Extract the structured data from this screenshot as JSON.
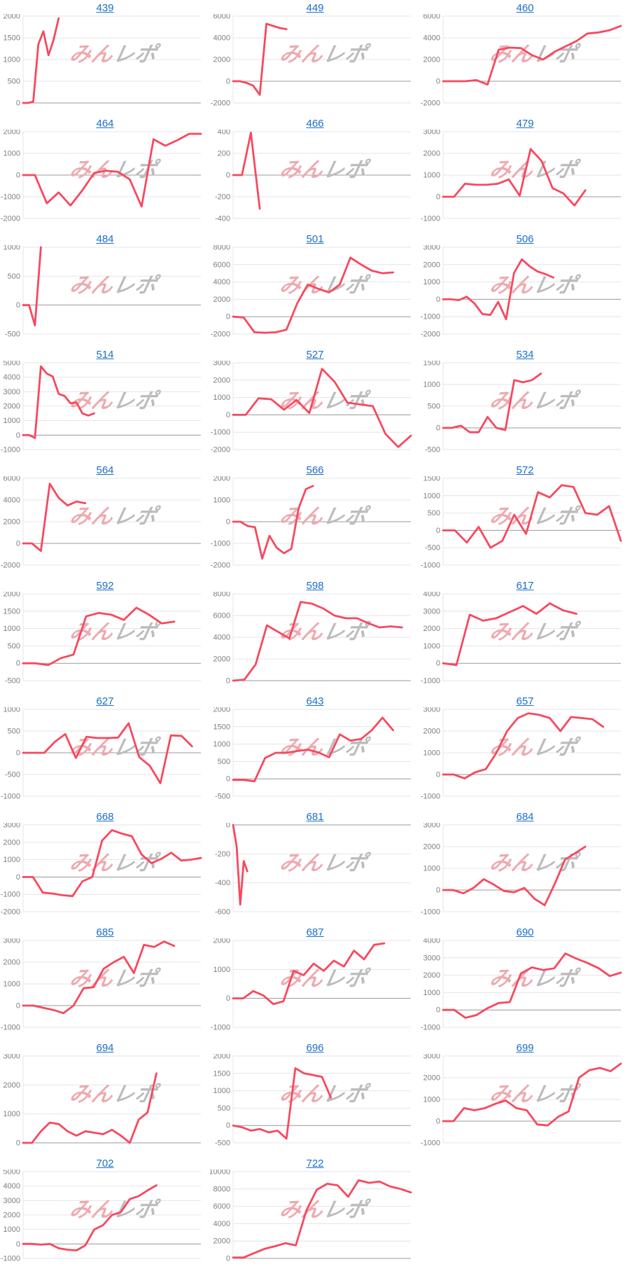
{
  "page": {
    "background": "#ffffff",
    "watermark": {
      "part1": "みん",
      "part2": "レポ"
    }
  },
  "colors": {
    "line": "#f8485e",
    "grid": "#e4e4e4",
    "zero_line": "#999999",
    "axis_text": "#7f7f7f",
    "title_link": "#1a6fce",
    "watermark_pink": "#edaab0",
    "watermark_gray": "#bcbcbc"
  },
  "chart_data": [
    {
      "type": "line",
      "title": "439",
      "ylim": [
        0,
        2000
      ],
      "yticks": [
        0,
        500,
        1000,
        1500,
        2000
      ],
      "span": 0.2,
      "values": [
        0,
        0,
        30,
        1350,
        1650,
        1100,
        1450,
        1950
      ]
    },
    {
      "type": "line",
      "title": "449",
      "ylim": [
        -2000,
        6000
      ],
      "yticks": [
        -2000,
        0,
        2000,
        4000,
        6000
      ],
      "span": 0.3,
      "values": [
        0,
        0,
        -150,
        -400,
        -1250,
        5300,
        5100,
        4900,
        4800
      ]
    },
    {
      "type": "line",
      "title": "460",
      "ylim": [
        -2000,
        6000
      ],
      "yticks": [
        -2000,
        0,
        2000,
        4000,
        6000
      ],
      "span": 1.0,
      "values": [
        0,
        0,
        0,
        100,
        -300,
        2900,
        3100,
        3050,
        2400,
        2000,
        2700,
        3200,
        3700,
        4400,
        4500,
        4700,
        5100
      ]
    },
    {
      "type": "line",
      "title": "464",
      "ylim": [
        -2000,
        2000
      ],
      "yticks": [
        -2000,
        -1000,
        0,
        1000,
        2000
      ],
      "span": 1.0,
      "values": [
        0,
        0,
        -1300,
        -800,
        -1400,
        -700,
        100,
        200,
        150,
        -200,
        -1450,
        1650,
        1350,
        1600,
        1900,
        1900
      ]
    },
    {
      "type": "line",
      "title": "466",
      "ylim": [
        -400,
        400
      ],
      "yticks": [
        -400,
        -200,
        0,
        200,
        400
      ],
      "span": 0.15,
      "values": [
        0,
        0,
        390,
        -310
      ]
    },
    {
      "type": "line",
      "title": "479",
      "ylim": [
        -1000,
        3000
      ],
      "yticks": [
        -1000,
        0,
        1000,
        2000,
        3000
      ],
      "span": 0.8,
      "values": [
        0,
        0,
        600,
        550,
        550,
        600,
        800,
        50,
        2200,
        1650,
        400,
        150,
        -400,
        300
      ]
    },
    {
      "type": "line",
      "title": "484",
      "ylim": [
        -500,
        1000
      ],
      "yticks": [
        -500,
        0,
        500,
        1000
      ],
      "span": 0.1,
      "values": [
        0,
        0,
        -350,
        1000
      ]
    },
    {
      "type": "line",
      "title": "501",
      "ylim": [
        -2000,
        8000
      ],
      "yticks": [
        -2000,
        0,
        2000,
        4000,
        6000,
        8000
      ],
      "span": 0.9,
      "values": [
        0,
        -100,
        -1800,
        -1850,
        -1800,
        -1500,
        1500,
        3700,
        3200,
        2800,
        3700,
        6800,
        6000,
        5300,
        5000,
        5100
      ]
    },
    {
      "type": "line",
      "title": "506",
      "ylim": [
        -2000,
        3000
      ],
      "yticks": [
        -2000,
        -1000,
        0,
        1000,
        2000,
        3000
      ],
      "span": 0.62,
      "values": [
        0,
        0,
        -50,
        150,
        -250,
        -850,
        -900,
        -150,
        -1150,
        1500,
        2300,
        1900,
        1600,
        1450,
        1250
      ]
    },
    {
      "type": "line",
      "title": "514",
      "ylim": [
        -1000,
        5000
      ],
      "yticks": [
        -1000,
        0,
        1000,
        2000,
        3000,
        4000,
        5000
      ],
      "span": 0.4,
      "values": [
        0,
        0,
        -200,
        4750,
        4250,
        4050,
        2850,
        2700,
        2200,
        2250,
        1500,
        1350,
        1500
      ]
    },
    {
      "type": "line",
      "title": "527",
      "ylim": [
        -2000,
        3000
      ],
      "yticks": [
        -2000,
        -1000,
        0,
        1000,
        2000,
        3000
      ],
      "span": 1.0,
      "values": [
        0,
        0,
        950,
        900,
        300,
        850,
        100,
        2650,
        1900,
        700,
        600,
        500,
        -1100,
        -1850,
        -1200
      ]
    },
    {
      "type": "line",
      "title": "534",
      "ylim": [
        -500,
        1500
      ],
      "yticks": [
        -500,
        0,
        500,
        1000,
        1500
      ],
      "span": 0.55,
      "values": [
        0,
        0,
        50,
        -100,
        -100,
        250,
        0,
        -50,
        1100,
        1050,
        1100,
        1250
      ]
    },
    {
      "type": "line",
      "title": "564",
      "ylim": [
        -2000,
        6000
      ],
      "yticks": [
        -2000,
        0,
        2000,
        4000,
        6000
      ],
      "span": 0.35,
      "values": [
        0,
        0,
        -700,
        5500,
        4200,
        3500,
        3850,
        3700
      ]
    },
    {
      "type": "line",
      "title": "566",
      "ylim": [
        -2000,
        2000
      ],
      "yticks": [
        -2000,
        -1000,
        0,
        1000,
        2000
      ],
      "span": 0.45,
      "values": [
        0,
        0,
        -200,
        -250,
        -1700,
        -650,
        -1200,
        -1450,
        -1250,
        600,
        1500,
        1650
      ]
    },
    {
      "type": "line",
      "title": "572",
      "ylim": [
        -1000,
        1500
      ],
      "yticks": [
        -1000,
        -500,
        0,
        500,
        1000,
        1500
      ],
      "span": 1.0,
      "values": [
        0,
        0,
        -350,
        100,
        -500,
        -300,
        450,
        -100,
        1100,
        950,
        1300,
        1250,
        500,
        450,
        700,
        -300
      ]
    },
    {
      "type": "line",
      "title": "592",
      "ylim": [
        -500,
        2000
      ],
      "yticks": [
        -500,
        0,
        500,
        1000,
        1500,
        2000
      ],
      "span": 0.85,
      "values": [
        0,
        0,
        -50,
        150,
        250,
        1350,
        1450,
        1400,
        1250,
        1600,
        1400,
        1150,
        1200
      ]
    },
    {
      "type": "line",
      "title": "598",
      "ylim": [
        0,
        8000
      ],
      "yticks": [
        0,
        2000,
        4000,
        6000,
        8000
      ],
      "span": 0.95,
      "values": [
        0,
        100,
        1500,
        5100,
        4500,
        3900,
        7250,
        7100,
        6650,
        6000,
        5750,
        5750,
        5300,
        4900,
        5000,
        4900
      ]
    },
    {
      "type": "line",
      "title": "617",
      "ylim": [
        -1000,
        4000
      ],
      "yticks": [
        -1000,
        0,
        1000,
        2000,
        3000,
        4000
      ],
      "span": 0.75,
      "values": [
        0,
        -100,
        2800,
        2450,
        2600,
        2950,
        3300,
        2850,
        3450,
        3050,
        2850
      ]
    },
    {
      "type": "line",
      "title": "627",
      "ylim": [
        -1000,
        1000
      ],
      "yticks": [
        -1000,
        -500,
        0,
        500,
        1000
      ],
      "span": 0.95,
      "values": [
        0,
        0,
        0,
        250,
        430,
        -120,
        370,
        340,
        340,
        350,
        680,
        -100,
        -300,
        -700,
        400,
        390,
        150
      ]
    },
    {
      "type": "line",
      "title": "643",
      "ylim": [
        -500,
        2000
      ],
      "yticks": [
        -500,
        0,
        500,
        1000,
        1500,
        2000
      ],
      "span": 0.9,
      "values": [
        -30,
        -30,
        -70,
        600,
        750,
        750,
        800,
        840,
        760,
        620,
        1280,
        1100,
        1150,
        1400,
        1760,
        1400
      ]
    },
    {
      "type": "line",
      "title": "657",
      "ylim": [
        -1000,
        3000
      ],
      "yticks": [
        -1000,
        0,
        1000,
        2000,
        3000
      ],
      "span": 0.9,
      "values": [
        0,
        0,
        -180,
        100,
        250,
        1000,
        2000,
        2600,
        2820,
        2750,
        2600,
        2000,
        2650,
        2600,
        2550,
        2200
      ]
    },
    {
      "type": "line",
      "title": "668",
      "ylim": [
        -2000,
        3000
      ],
      "yticks": [
        -2000,
        -1000,
        0,
        1000,
        2000,
        3000
      ],
      "span": 1.0,
      "values": [
        0,
        0,
        -900,
        -950,
        -1050,
        -1100,
        -250,
        0,
        2100,
        2700,
        2500,
        2350,
        1300,
        800,
        1050,
        1400,
        950,
        1000,
        1100
      ]
    },
    {
      "type": "line",
      "title": "681",
      "ylim": [
        -600,
        0
      ],
      "yticks": [
        -600,
        -400,
        -200,
        0
      ],
      "span": 0.08,
      "values": [
        0,
        -150,
        -550,
        -250,
        -320
      ]
    },
    {
      "type": "line",
      "title": "684",
      "ylim": [
        -1000,
        3000
      ],
      "yticks": [
        -1000,
        0,
        1000,
        2000,
        3000
      ],
      "span": 0.8,
      "values": [
        0,
        0,
        -150,
        100,
        500,
        250,
        -50,
        -100,
        100,
        -400,
        -700,
        300,
        1400,
        1700,
        2000
      ]
    },
    {
      "type": "line",
      "title": "685",
      "ylim": [
        -1000,
        3000
      ],
      "yticks": [
        -1000,
        0,
        1000,
        2000,
        3000
      ],
      "span": 0.85,
      "values": [
        0,
        0,
        -100,
        -200,
        -350,
        0,
        800,
        850,
        1700,
        2000,
        2250,
        1500,
        2800,
        2700,
        2950,
        2750
      ]
    },
    {
      "type": "line",
      "title": "687",
      "ylim": [
        -1000,
        2000
      ],
      "yticks": [
        -1000,
        0,
        1000,
        2000
      ],
      "span": 0.85,
      "values": [
        0,
        0,
        250,
        100,
        -200,
        -100,
        950,
        800,
        1200,
        950,
        1300,
        1100,
        1650,
        1350,
        1850,
        1900
      ]
    },
    {
      "type": "line",
      "title": "690",
      "ylim": [
        -1000,
        4000
      ],
      "yticks": [
        -1000,
        0,
        1000,
        2000,
        3000,
        4000
      ],
      "span": 1.0,
      "values": [
        0,
        0,
        -450,
        -300,
        100,
        400,
        450,
        2100,
        2450,
        2300,
        2400,
        3250,
        2950,
        2700,
        2400,
        1950,
        2150
      ]
    },
    {
      "type": "line",
      "title": "694",
      "ylim": [
        0,
        3000
      ],
      "yticks": [
        0,
        1000,
        2000,
        3000
      ],
      "span": 0.75,
      "values": [
        0,
        0,
        400,
        700,
        650,
        400,
        250,
        400,
        350,
        300,
        450,
        250,
        0,
        800,
        1050,
        2400
      ]
    },
    {
      "type": "line",
      "title": "696",
      "ylim": [
        -500,
        2000
      ],
      "yticks": [
        -500,
        0,
        500,
        1000,
        1500,
        2000
      ],
      "span": 0.55,
      "values": [
        0,
        -50,
        -150,
        -100,
        -200,
        -150,
        -380,
        1650,
        1500,
        1450,
        1400,
        800
      ]
    },
    {
      "type": "line",
      "title": "699",
      "ylim": [
        -1000,
        3000
      ],
      "yticks": [
        -1000,
        0,
        1000,
        2000,
        3000
      ],
      "span": 1.0,
      "values": [
        0,
        0,
        600,
        500,
        600,
        800,
        950,
        600,
        500,
        -150,
        -200,
        200,
        450,
        2000,
        2350,
        2450,
        2300,
        2650
      ]
    },
    {
      "type": "line",
      "title": "702",
      "ylim": [
        -1000,
        5000
      ],
      "yticks": [
        -1000,
        0,
        1000,
        2000,
        3000,
        4000,
        5000
      ],
      "span": 0.75,
      "values": [
        0,
        0,
        -50,
        0,
        -300,
        -400,
        -450,
        -100,
        1000,
        1300,
        2000,
        2200,
        3100,
        3300,
        3700,
        4050
      ]
    },
    {
      "type": "line",
      "title": "722",
      "ylim": [
        0,
        10000
      ],
      "yticks": [
        0,
        2000,
        4000,
        6000,
        8000,
        10000
      ],
      "span": 1.0,
      "values": [
        100,
        100,
        600,
        1100,
        1400,
        1750,
        1500,
        5500,
        7900,
        8600,
        8400,
        7100,
        9000,
        8700,
        8850,
        8300,
        8000,
        7600
      ]
    }
  ]
}
